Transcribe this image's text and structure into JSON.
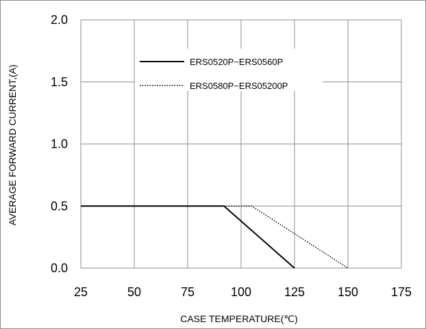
{
  "chart_data": {
    "type": "line",
    "title": "",
    "xlabel": "CASE  TEMPERATURE(℃)",
    "ylabel": "AVERAGE FORWARD CURRENT,(A)",
    "xlim": [
      25,
      175
    ],
    "ylim": [
      0,
      2.0
    ],
    "x_ticks": [
      25,
      50,
      75,
      100,
      125,
      150,
      175
    ],
    "x_tick_labels": [
      "25",
      "50",
      "75",
      "100",
      "125",
      "150",
      "175"
    ],
    "y_ticks": [
      0,
      0.5,
      1.0,
      1.5,
      2.0
    ],
    "y_tick_labels": [
      "0.0",
      "0.5",
      "1.0",
      "1.5",
      "2.0"
    ],
    "grid": true,
    "legend_position": "top-center",
    "series": [
      {
        "name": "ERS0520P~ERS0560P",
        "style": "solid",
        "color": "#000000",
        "x": [
          25,
          92,
          125
        ],
        "y": [
          0.5,
          0.5,
          0.0
        ]
      },
      {
        "name": "ERS0580P~ERS05200P",
        "style": "dotted",
        "color": "#000000",
        "x": [
          25,
          105,
          150
        ],
        "y": [
          0.5,
          0.5,
          0.0
        ]
      }
    ]
  }
}
